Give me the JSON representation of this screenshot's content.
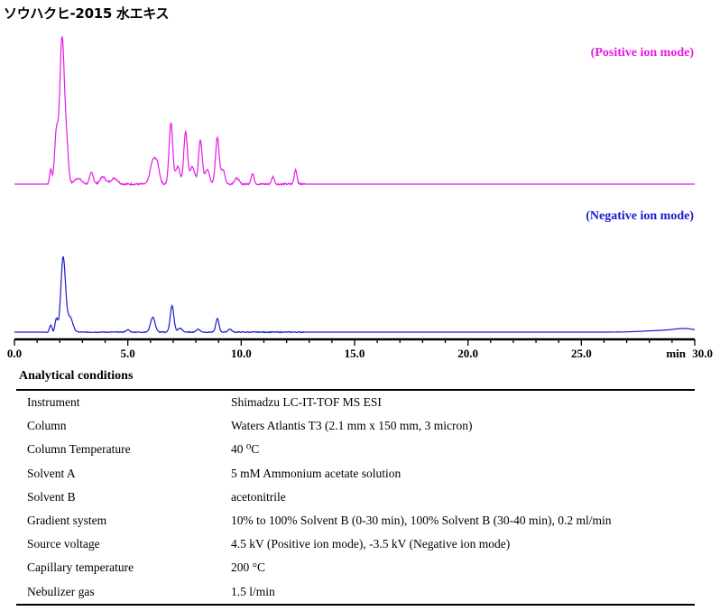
{
  "title": "ソウハクヒ-2015 水エキス",
  "chart_data": {
    "type": "line",
    "xlim": [
      0,
      30
    ],
    "x_ticks": [
      "0.0",
      "5.0",
      "10.0",
      "15.0",
      "20.0",
      "25.0",
      "30.0"
    ],
    "x_unit": "min",
    "grid": false,
    "series": [
      {
        "name": "(Positive ion mode)",
        "color": "#e619e6",
        "baseline": 0.02,
        "peaks": [
          {
            "x": 1.6,
            "y": 0.1,
            "w": 0.05
          },
          {
            "x": 1.85,
            "y": 0.35,
            "w": 0.08
          },
          {
            "x": 2.1,
            "y": 1.0,
            "w": 0.1
          },
          {
            "x": 2.3,
            "y": 0.25,
            "w": 0.08
          },
          {
            "x": 2.8,
            "y": 0.04,
            "w": 0.15
          },
          {
            "x": 3.4,
            "y": 0.08,
            "w": 0.08
          },
          {
            "x": 3.9,
            "y": 0.05,
            "w": 0.12
          },
          {
            "x": 4.4,
            "y": 0.04,
            "w": 0.15
          },
          {
            "x": 6.1,
            "y": 0.15,
            "w": 0.12
          },
          {
            "x": 6.3,
            "y": 0.12,
            "w": 0.1
          },
          {
            "x": 6.9,
            "y": 0.42,
            "w": 0.08
          },
          {
            "x": 7.2,
            "y": 0.12,
            "w": 0.1
          },
          {
            "x": 7.55,
            "y": 0.36,
            "w": 0.08
          },
          {
            "x": 7.85,
            "y": 0.12,
            "w": 0.1
          },
          {
            "x": 8.2,
            "y": 0.3,
            "w": 0.08
          },
          {
            "x": 8.5,
            "y": 0.1,
            "w": 0.1
          },
          {
            "x": 8.95,
            "y": 0.32,
            "w": 0.08
          },
          {
            "x": 9.2,
            "y": 0.1,
            "w": 0.08
          },
          {
            "x": 9.8,
            "y": 0.04,
            "w": 0.1
          },
          {
            "x": 10.5,
            "y": 0.07,
            "w": 0.07
          },
          {
            "x": 11.4,
            "y": 0.05,
            "w": 0.06
          },
          {
            "x": 12.4,
            "y": 0.1,
            "w": 0.06
          }
        ]
      },
      {
        "name": "(Negative ion mode)",
        "color": "#1a1acc",
        "baseline": 0.02,
        "peaks": [
          {
            "x": 1.6,
            "y": 0.1,
            "w": 0.05
          },
          {
            "x": 1.85,
            "y": 0.18,
            "w": 0.06
          },
          {
            "x": 2.15,
            "y": 1.0,
            "w": 0.1
          },
          {
            "x": 2.45,
            "y": 0.2,
            "w": 0.12
          },
          {
            "x": 5.0,
            "y": 0.03,
            "w": 0.08
          },
          {
            "x": 6.1,
            "y": 0.2,
            "w": 0.1
          },
          {
            "x": 6.95,
            "y": 0.35,
            "w": 0.08
          },
          {
            "x": 7.3,
            "y": 0.05,
            "w": 0.1
          },
          {
            "x": 8.1,
            "y": 0.04,
            "w": 0.08
          },
          {
            "x": 8.95,
            "y": 0.18,
            "w": 0.07
          },
          {
            "x": 9.5,
            "y": 0.04,
            "w": 0.08
          },
          {
            "x": 28.5,
            "y": 0.02,
            "w": 0.8
          },
          {
            "x": 29.6,
            "y": 0.04,
            "w": 0.5
          }
        ]
      }
    ]
  },
  "conditions": {
    "heading": "Analytical conditions",
    "rows": [
      {
        "key": "Instrument",
        "value": "Shimadzu LC-IT-TOF MS ESI"
      },
      {
        "key": "Column",
        "value": "Waters Atlantis T3 (2.1 mm x 150 mm, 3 micron)"
      },
      {
        "key": "Column Temperature",
        "value": "40 ⁰C"
      },
      {
        "key": "Solvent A",
        "value": "5 mM Ammonium acetate solution"
      },
      {
        "key": "Solvent B",
        "value": "acetonitrile"
      },
      {
        "key": "Gradient system",
        "value": "10% to 100% Solvent B (0-30 min), 100% Solvent B (30-40 min), 0.2 ml/min"
      },
      {
        "key": "Source voltage",
        "value": "4.5 kV (Positive ion mode), -3.5 kV (Negative ion mode)"
      },
      {
        "key": "Capillary temperature",
        "value": "200 °C"
      },
      {
        "key": "Nebulizer gas",
        "value": "1.5 l/min"
      }
    ]
  }
}
